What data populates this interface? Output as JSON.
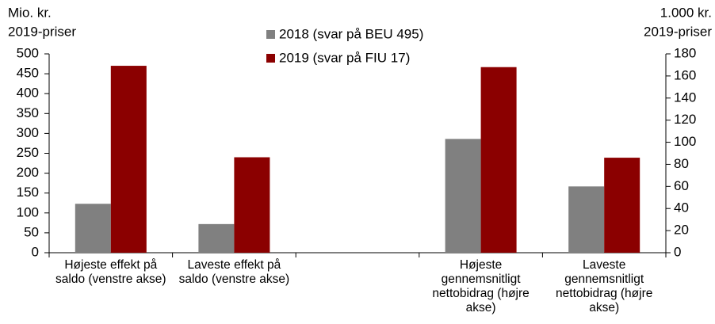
{
  "chart_data": {
    "type": "bar",
    "ylabel": [
      "Mio. kr.",
      "2019-priser"
    ],
    "y2label": [
      "1.000 kr.",
      "2019-priser"
    ],
    "categories": [
      "Højeste effekt på saldo (venstre akse)",
      "Laveste effekt på saldo (venstre akse)",
      null,
      "Højeste gennemsnitligt nettobidrag (højre akse)",
      "Laveste gennemsnitligt nettobidrag (højre akse)"
    ],
    "value_axis": [
      "y",
      "y",
      null,
      "y2",
      "y2"
    ],
    "series": [
      {
        "name": "2018 (svar på BEU 495)",
        "color": "#808080",
        "values": [
          123,
          72,
          null,
          103,
          60
        ]
      },
      {
        "name": "2019 (svar på FIU 17)",
        "color": "#8b0000",
        "values": [
          470,
          240,
          null,
          168,
          86
        ]
      }
    ],
    "ylim": [
      0,
      500
    ],
    "yticks": [
      0,
      50,
      100,
      150,
      200,
      250,
      300,
      350,
      400,
      450,
      500
    ],
    "y2lim": [
      0,
      180
    ],
    "y2ticks": [
      0,
      20,
      40,
      60,
      80,
      100,
      120,
      140,
      160,
      180
    ],
    "grid": false
  }
}
